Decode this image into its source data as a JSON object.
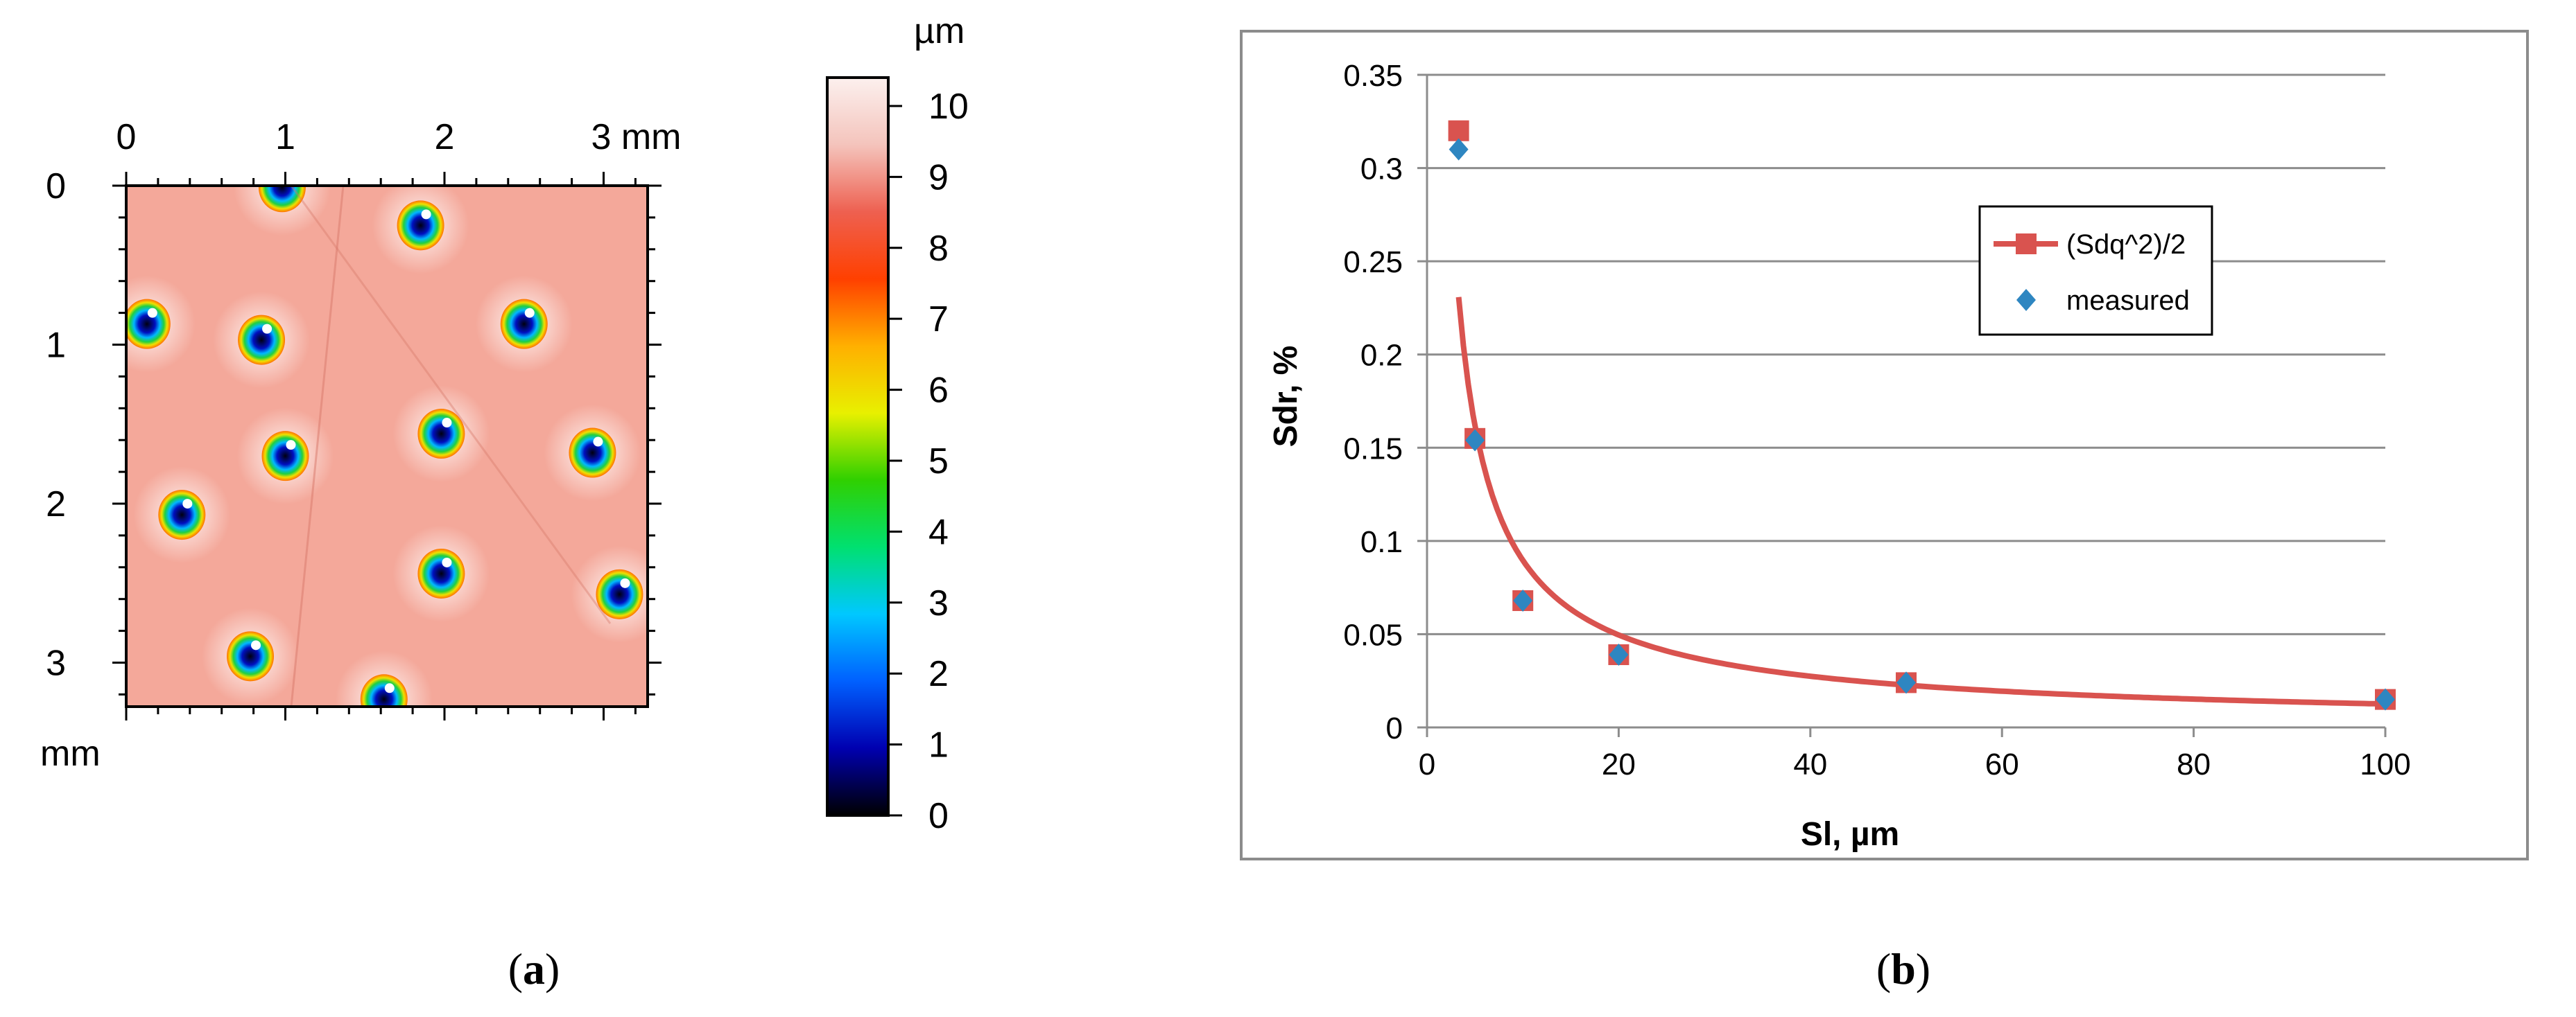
{
  "panel_a": {
    "caption_label": "a",
    "x_ticks": [
      "0",
      "1",
      "2",
      "3 mm"
    ],
    "y_ticks": [
      "0",
      "1",
      "2",
      "3"
    ],
    "y_unit": "mm",
    "colorbar": {
      "unit": "µm",
      "ticks": [
        "0",
        "1",
        "2",
        "3",
        "4",
        "5",
        "6",
        "7",
        "8",
        "9",
        "10"
      ],
      "stops": [
        "#000000",
        "#0000b0",
        "#0060ff",
        "#00c8ff",
        "#00e070",
        "#30d000",
        "#e8f000",
        "#ffb000",
        "#ff4000",
        "#ee6050",
        "#f4c4bc",
        "#fcf0ee"
      ]
    },
    "surface_color": "#f4a89a",
    "pits": [
      [
        0.13,
        0.87
      ],
      [
        0.98,
        0.01
      ],
      [
        1.85,
        0.25
      ],
      [
        0.85,
        0.97
      ],
      [
        2.5,
        0.87
      ],
      [
        1.0,
        1.7
      ],
      [
        1.98,
        1.56
      ],
      [
        2.93,
        1.68
      ],
      [
        0.35,
        2.07
      ],
      [
        1.98,
        2.44
      ],
      [
        3.1,
        2.57
      ],
      [
        0.78,
        2.96
      ],
      [
        1.62,
        3.23
      ]
    ]
  },
  "panel_b": {
    "caption_label": "b",
    "chart_data": {
      "type": "scatter",
      "xlabel": "Sl, µm",
      "ylabel": "Sdr, %",
      "xlim": [
        0,
        100
      ],
      "ylim": [
        0,
        0.35
      ],
      "x_ticks": [
        "0",
        "20",
        "40",
        "60",
        "80",
        "100"
      ],
      "y_ticks": [
        "0",
        "0.05",
        "0.1",
        "0.15",
        "0.2",
        "0.25",
        "0.3",
        "0.35"
      ],
      "grid": true,
      "legend_position": "top-right",
      "series": [
        {
          "name": "(Sdq^2)/2",
          "style": "line-square",
          "color": "#d9534f",
          "x": [
            3.3,
            5,
            10,
            20,
            50,
            100
          ],
          "y": [
            0.32,
            0.155,
            0.068,
            0.039,
            0.024,
            0.015
          ]
        },
        {
          "name": "measured",
          "style": "diamond",
          "color": "#2e86c1",
          "x": [
            3.3,
            5,
            10,
            20,
            50,
            100
          ],
          "y": [
            0.31,
            0.154,
            0.068,
            0.039,
            0.024,
            0.015
          ]
        }
      ]
    }
  }
}
